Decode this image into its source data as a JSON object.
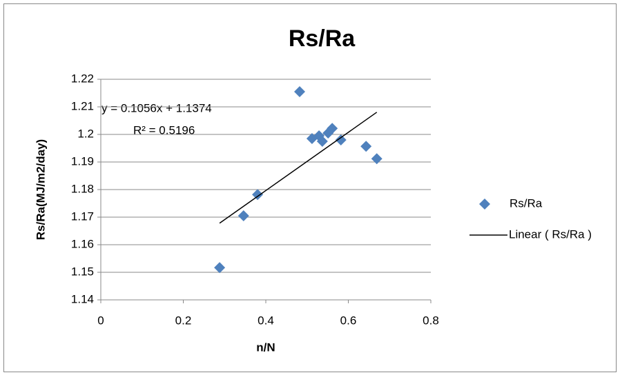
{
  "chart_data": {
    "type": "scatter",
    "title": "Rs/Ra",
    "xlabel": "n/N",
    "ylabel": "Rs/Ra(MJ/m2/day)",
    "series": [
      {
        "name": "Rs/Ra",
        "color": "#4f81bd",
        "x": [
          0.288,
          0.346,
          0.38,
          0.482,
          0.512,
          0.529,
          0.537,
          0.551,
          0.561,
          0.582,
          0.643,
          0.669
        ],
        "values": [
          1.1517,
          1.1705,
          1.1782,
          1.2155,
          1.1985,
          1.1995,
          1.1975,
          1.2005,
          1.2022,
          1.198,
          1.1957,
          1.1912
        ]
      }
    ],
    "trendline": {
      "name": "Linear ( Rs/Ra )",
      "color": "#000000",
      "slope": 0.1056,
      "intercept": 1.1374,
      "equation": "y = 0.1056x + 1.1374",
      "r2_label": "R² = 0.5196"
    },
    "xlim": [
      0,
      0.8
    ],
    "xticks": [
      0,
      0.2,
      0.4,
      0.6,
      0.8
    ],
    "ylim": [
      1.14,
      1.22
    ],
    "yticks": [
      1.14,
      1.15,
      1.16,
      1.17,
      1.18,
      1.19,
      1.2,
      1.21,
      1.22
    ],
    "grid": true,
    "legend": "right"
  }
}
